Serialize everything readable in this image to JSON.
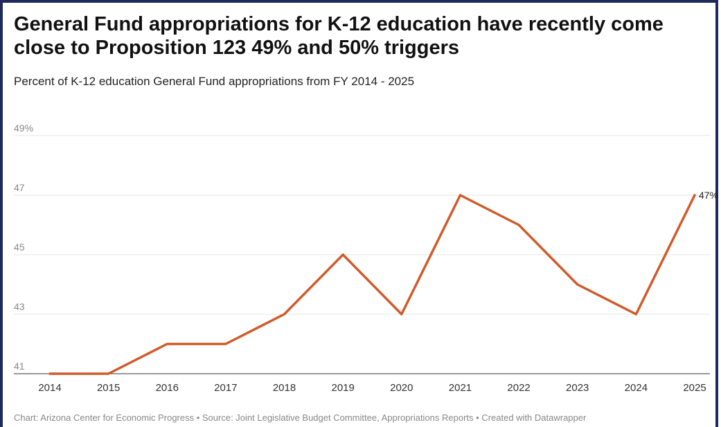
{
  "chart_data": {
    "type": "line",
    "title": "General Fund appropriations for K-12 education have recently come close to Proposition 123 49% and 50% triggers",
    "subtitle": "Percent of K-12 education General Fund appropriations from FY 2014 - 2025",
    "xlabel": "",
    "ylabel": "",
    "ylim": [
      41,
      49
    ],
    "yticks": [
      41,
      43,
      45,
      47,
      49
    ],
    "ytick_labels": [
      "41",
      "43",
      "45",
      "47",
      "49%"
    ],
    "x": [
      "2014",
      "2015",
      "2016",
      "2017",
      "2018",
      "2019",
      "2020",
      "2021",
      "2022",
      "2023",
      "2024",
      "2025"
    ],
    "series": [
      {
        "values": [
          41,
          41,
          42,
          42,
          43,
          45,
          43,
          47,
          46,
          44,
          43,
          47
        ],
        "color": "#cf5b2a",
        "end_label": "47%"
      }
    ],
    "grid": true,
    "legend": "none"
  },
  "footer": "Chart: Arizona Center for Economic Progress • Source: Joint Legislative Budget Committee, Appropriations Reports • Created with Datawrapper"
}
